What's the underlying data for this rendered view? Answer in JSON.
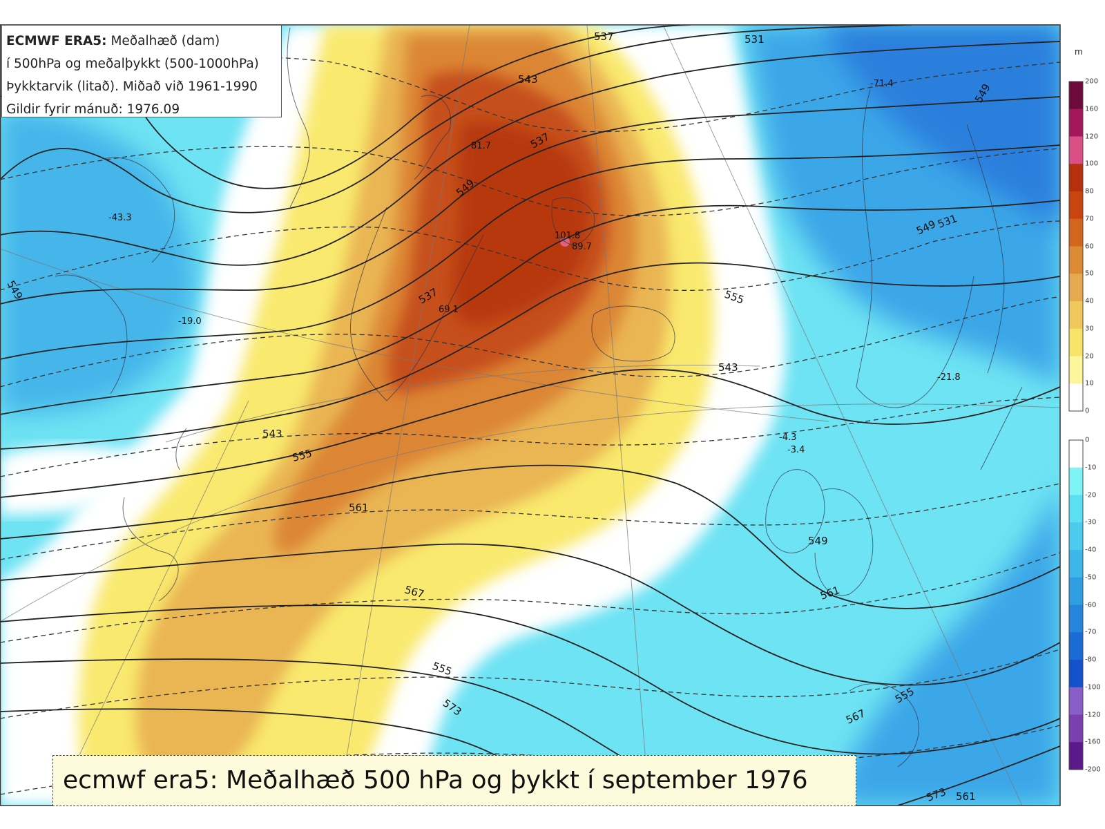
{
  "info_box": {
    "line1_bold": "ECMWF ERA5:",
    "line1_rest": " Meðalhæð (dam)",
    "line2": "í 500hPa og meðalþykkt (500-1000hPa)",
    "line3": "Þykktarvik (litað). Miðað við 1961-1990",
    "line4": "Gildir fyrir mánuð: 1976.09"
  },
  "caption": "ecmwf era5: Meðalhæð 500 hPa og þykkt í september 1976",
  "colorbar": {
    "unit": "m",
    "positive_ticks": [
      "200",
      "160",
      "120",
      "100",
      "80",
      "70",
      "60",
      "50",
      "40",
      "30",
      "20",
      "10",
      "0"
    ],
    "positive_colors": [
      "#6e0a3c",
      "#a3185a",
      "#d94f86",
      "#b5300c",
      "#c9450f",
      "#d2661f",
      "#dd8a37",
      "#e6a94f",
      "#f0c85d",
      "#f8e468",
      "#fdf59a",
      "#ffffff"
    ],
    "negative_ticks": [
      "0",
      "-10",
      "-20",
      "-30",
      "-40",
      "-50",
      "-60",
      "-70",
      "-80",
      "-100",
      "-120",
      "-160",
      "-200"
    ],
    "negative_colors": [
      "#ffffff",
      "#7ff4f7",
      "#5cdff2",
      "#4ccbee",
      "#3fb6ea",
      "#2f9ee3",
      "#2585dc",
      "#1a6bd4",
      "#1452cc",
      "#8a5ec8",
      "#7a3fb0",
      "#5a1a8c"
    ]
  },
  "contour_labels": [
    "531",
    "537",
    "543",
    "549",
    "537",
    "537",
    "549",
    "549",
    "555",
    "543",
    "543",
    "555",
    "561",
    "567",
    "573",
    "561",
    "567",
    "555",
    "555",
    "573",
    "561",
    "549",
    "549",
    "531"
  ],
  "value_labels": [
    "-43.3",
    "-19.0",
    "81.7",
    "101.8",
    "89.7",
    "69.1",
    "-71.4",
    "-21.8",
    "-4.3",
    "-3.4"
  ]
}
